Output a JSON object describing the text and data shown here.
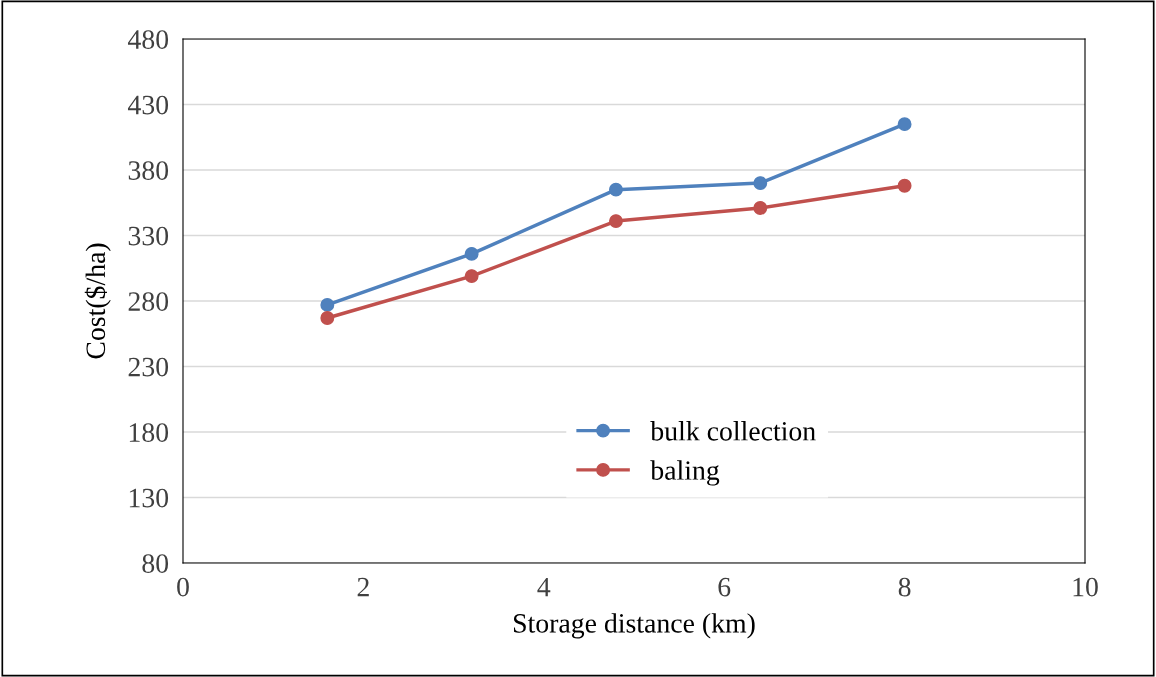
{
  "chart_data": {
    "type": "line",
    "xlabel": "Storage distance (km)",
    "ylabel": "Cost($/ha)",
    "x": [
      1.6,
      3.2,
      4.8,
      6.4,
      8.0
    ],
    "series": [
      {
        "name": "bulk collection",
        "color": "#4f81bd",
        "values": [
          277,
          316,
          365,
          370,
          415
        ]
      },
      {
        "name": "baling",
        "color": "#c0504d",
        "values": [
          267,
          299,
          341,
          351,
          368
        ]
      }
    ],
    "xlim": [
      0,
      10
    ],
    "xticks": [
      0,
      2,
      4,
      6,
      8,
      10
    ],
    "ylim": [
      80,
      480
    ],
    "yticks": [
      80,
      130,
      180,
      230,
      280,
      330,
      380,
      430,
      480
    ],
    "grid": "y",
    "legend": "bottom",
    "marker": "circle",
    "line_style": "solid"
  }
}
